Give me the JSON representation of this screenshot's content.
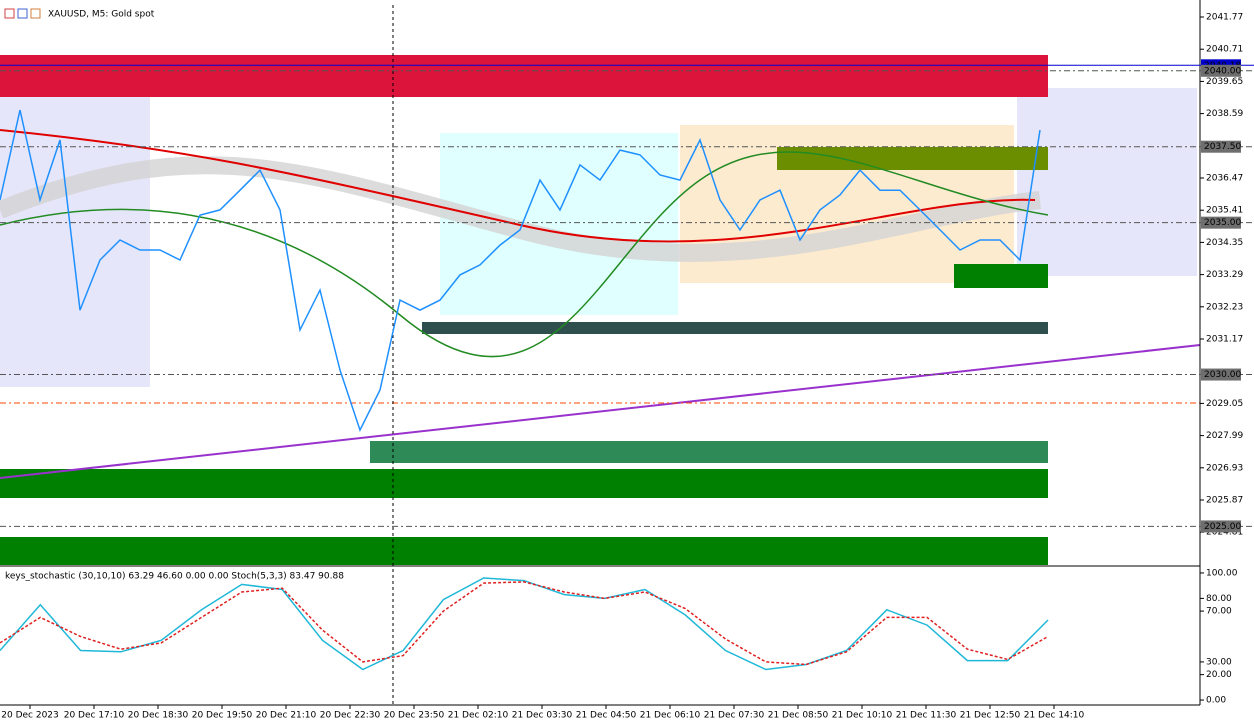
{
  "chart_data": [
    {
      "type": "line",
      "title": "XAUUSD, M5:  Gold spot",
      "color": "#1e90ff",
      "values": [
        2035.75,
        2038.71,
        2035.75,
        2037.72,
        2032.12,
        2033.77,
        2034.43,
        2034.1,
        2034.1,
        2033.77,
        2035.25,
        2035.42,
        2036.07,
        2036.73,
        2035.42,
        2031.47,
        2032.78,
        2030.15,
        2028.17,
        2029.49,
        2032.45,
        2032.12,
        2032.45,
        2033.28,
        2033.61,
        2034.26,
        2034.76,
        2036.4,
        2035.42,
        2036.9,
        2036.4,
        2037.39,
        2037.23,
        2036.57,
        2036.4,
        2037.72,
        2035.75,
        2034.76,
        2035.75,
        2036.07,
        2034.43,
        2035.42,
        2035.91,
        2036.73,
        2036.07,
        2036.07,
        2035.42,
        2034.76,
        2034.1,
        2034.43,
        2034.43,
        2033.77,
        2038.05
      ],
      "ylim": [
        2023.73,
        2042.33
      ],
      "yticks": [
        2041.77,
        2040.71,
        2039.65,
        2038.59,
        2036.47,
        2035.41,
        2034.35,
        2033.29,
        2032.23,
        2031.17,
        2029.05,
        2027.99,
        2026.93,
        2025.87,
        2024.81
      ],
      "price_levels": [
        {
          "value": 2040.18,
          "label": "2040.18"
        },
        {
          "value": 2040.0,
          "label": "2040.00"
        },
        {
          "value": 2037.5,
          "label": "2037.50"
        },
        {
          "value": 2035.0,
          "label": "2035.00"
        },
        {
          "value": 2030.0,
          "label": "2030.00"
        },
        {
          "value": 2025.0,
          "label": "2025.00"
        }
      ],
      "time_labels": [
        "20 Dec 2023",
        "20 Dec 17:10",
        "20 Dec 18:30",
        "20 Dec 19:50",
        "20 Dec 21:10",
        "20 Dec 22:30",
        "20 Dec 23:50",
        "21 Dec 02:10",
        "21 Dec 03:30",
        "21 Dec 04:50",
        "21 Dec 06:10",
        "21 Dec 07:30",
        "21 Dec 08:50",
        "21 Dec 10:10",
        "21 Dec 11:30",
        "21 Dec 12:50",
        "21 Dec 14:10"
      ]
    },
    {
      "type": "line",
      "title": "keys_stochastic (30,10,10) 63.29 46.60 0.00 0.00 Stoch(5,3,3) 83.47 90.88",
      "series": [
        {
          "color": "#1fb8d8",
          "values": [
            39,
            75,
            39,
            38,
            47,
            71,
            91,
            87,
            47,
            24,
            39,
            79,
            96,
            94,
            83,
            80,
            87,
            67,
            39,
            24,
            28,
            39,
            71,
            59,
            31,
            31,
            63
          ]
        },
        {
          "color": "#e02020",
          "values": [
            45,
            65,
            50,
            40,
            45,
            65,
            85,
            88,
            55,
            30,
            35,
            70,
            92,
            93,
            85,
            80,
            85,
            72,
            48,
            30,
            28,
            38,
            65,
            65,
            40,
            32,
            50
          ]
        }
      ],
      "ylim": [
        -3.9,
        103.9
      ],
      "yticks": [
        {
          "value": 100,
          "label": "100.00"
        },
        {
          "value": 80,
          "label": "80.00"
        },
        {
          "value": 70,
          "label": "70.00"
        },
        {
          "value": 30,
          "label": "30.00"
        },
        {
          "value": 20,
          "label": "20.00"
        },
        {
          "value": 0,
          "label": "0.00"
        }
      ]
    }
  ]
}
